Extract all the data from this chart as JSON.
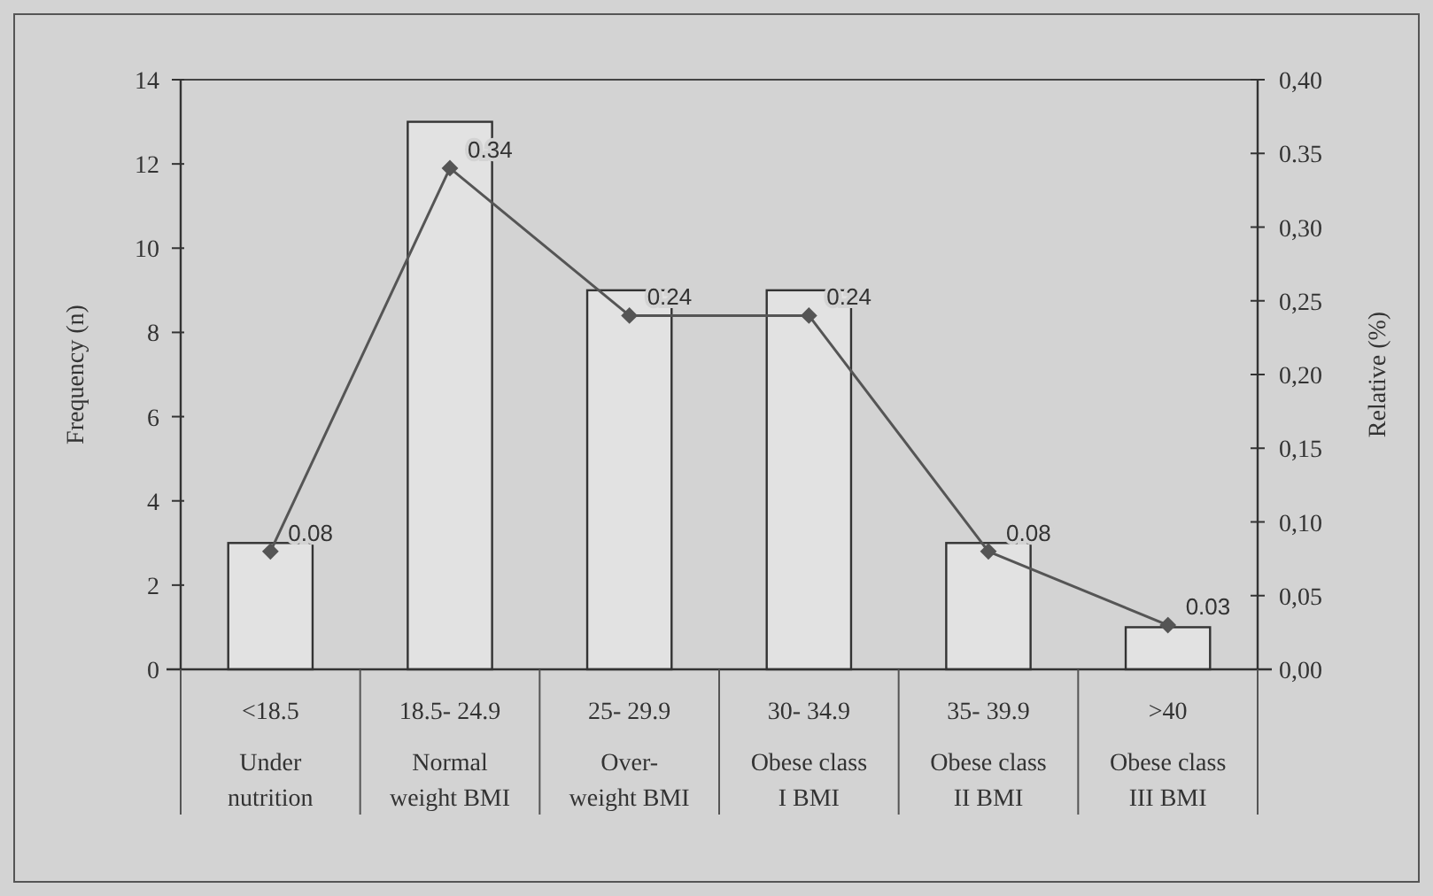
{
  "chart_data": {
    "type": "bar",
    "ylabel": "Frequency (n)",
    "y2label": "Relative (%)",
    "categories": [
      "<18.5\nUnder\nnutrition",
      "18.5- 24.9\nNormal\nweight BMI",
      "25- 29.9\nOver-\nweight BMI",
      "30- 34.9\nObese class\nI BMI",
      "35- 39.9\nObese class\nII BMI",
      ">40\nObese class\nIII BMI"
    ],
    "series": [
      {
        "color": "#e2e2e2",
        "values": [
          3,
          13,
          9,
          9,
          3,
          1
        ]
      },
      {
        "type": "line",
        "axis": "y2",
        "color": "#555555",
        "values": [
          0.08,
          0.34,
          0.24,
          0.24,
          0.08,
          0.03
        ],
        "value_labels": [
          "0.08",
          "0.34",
          "0.24",
          "0.24",
          "0.08",
          "0.03"
        ]
      }
    ],
    "ylim": [
      0,
      14
    ],
    "yticks": [
      0,
      2,
      4,
      6,
      8,
      10,
      12,
      14
    ],
    "y2lim": [
      0,
      0.4
    ],
    "y2ticks": [
      {
        "value": 0,
        "label": "0,00"
      },
      {
        "value": 0.05,
        "label": "0,05"
      },
      {
        "value": 0.1,
        "label": "0,10"
      },
      {
        "value": 0.15,
        "label": "0,15"
      },
      {
        "value": 0.2,
        "label": "0,20"
      },
      {
        "value": 0.25,
        "label": "0,25"
      },
      {
        "value": 0.3,
        "label": "0,30"
      },
      {
        "value": 0.35,
        "label": "0.35"
      },
      {
        "value": 0.4,
        "label": "0,40"
      }
    ],
    "grid": false,
    "marker": "diamond",
    "line_style": "solid"
  }
}
